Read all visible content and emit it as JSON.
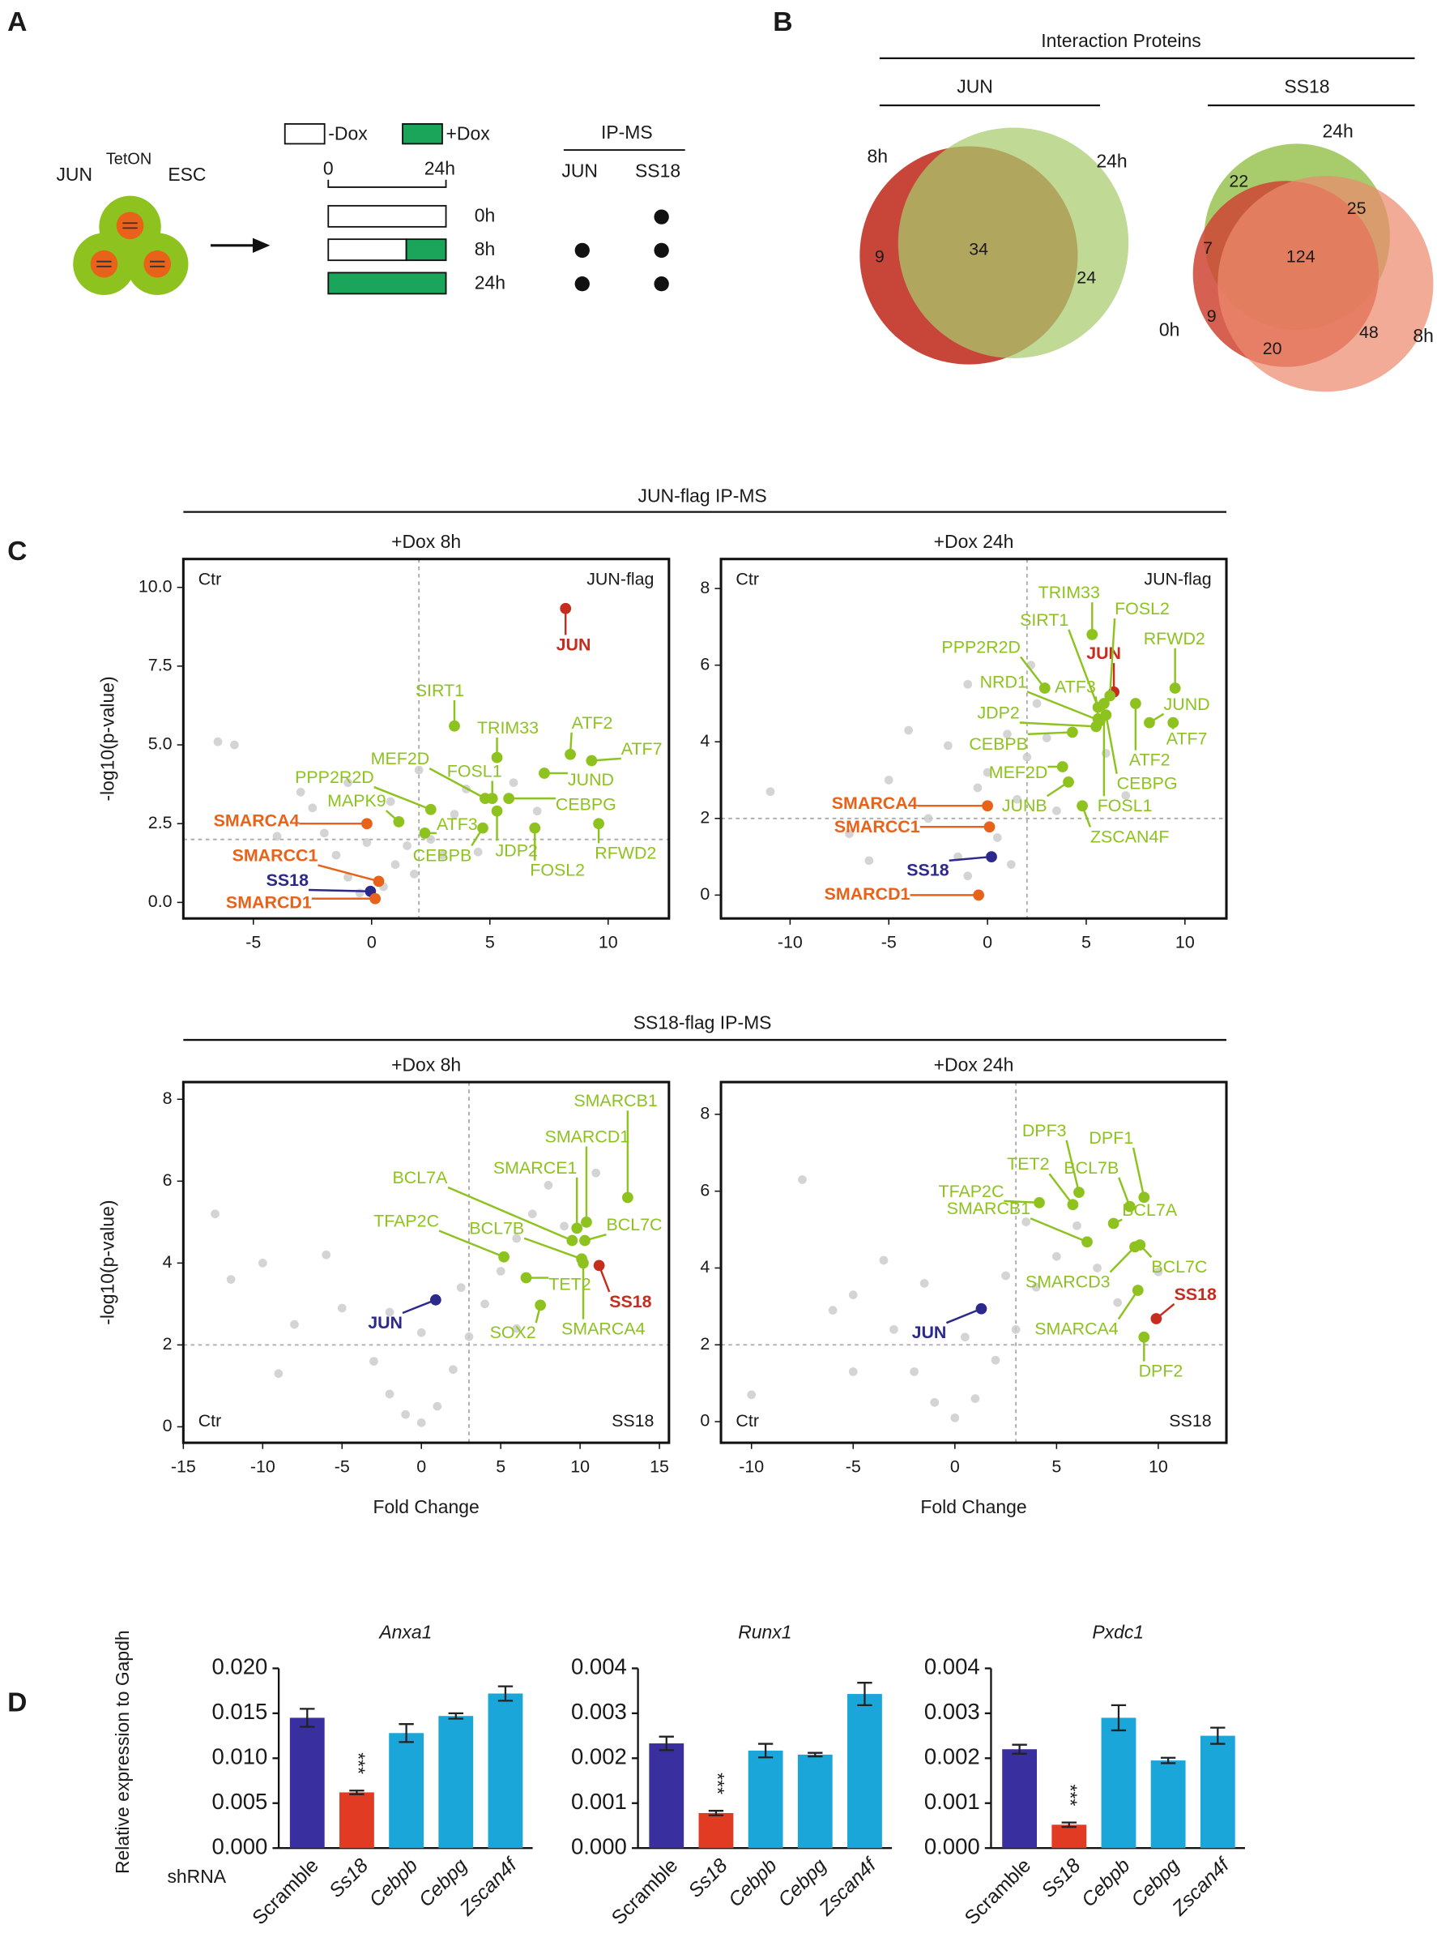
{
  "panel_labels": [
    "A",
    "B",
    "C",
    "D"
  ],
  "panel_a": {
    "cell_line": {
      "gene": "JUN",
      "superscript": "TetON",
      "suffix": "ESC"
    },
    "legend": [
      "-Dox",
      "+Dox"
    ],
    "timeline_ticks": [
      "0",
      "24h"
    ],
    "rows": [
      "0h",
      "8h",
      "24h"
    ],
    "ip_ms": {
      "title": "IP-MS",
      "columns": [
        "JUN",
        "SS18"
      ],
      "detected": [
        [
          false,
          true
        ],
        [
          true,
          true
        ],
        [
          true,
          true
        ]
      ]
    }
  },
  "panel_b": {
    "title": "Interaction Proteins",
    "venns": [
      {
        "title": "JUN",
        "sets": [
          "8h",
          "24h"
        ],
        "counts": [
          9,
          34,
          24
        ]
      },
      {
        "title": "SS18",
        "sets": [
          "24h",
          "0h",
          "8h"
        ],
        "counts": [
          22,
          25,
          7,
          124,
          9,
          20,
          48
        ]
      }
    ]
  },
  "panel_c": {
    "groups": [
      "JUN-flag IP-MS",
      "SS18-flag IP-MS"
    ]
  },
  "chart_data": [
    {
      "type": "volcano",
      "title": "+Dox 8h",
      "y_label": "-log10(p-value)",
      "xlim": [
        -7.96,
        12.57
      ],
      "ylim": [
        -0.51,
        10.9
      ],
      "xticks": [
        -5,
        0,
        5,
        10
      ],
      "yticks": [
        {
          "value": 0,
          "label": "0.0"
        },
        2.5,
        {
          "value": 5,
          "label": "5.0"
        },
        7.5,
        {
          "value": 10,
          "label": "10.0"
        }
      ],
      "thresholds": {
        "x": 2,
        "y": 2
      },
      "corner_labels": [
        "Ctr",
        "JUN-flag"
      ],
      "corner_position": "top",
      "background": {
        "color": "#c9c9c9",
        "x": [
          -6.5,
          -5.8,
          -3,
          -2,
          -1.5,
          -1,
          -0.5,
          0.5,
          1,
          1.5,
          2.5,
          3,
          3.5,
          4,
          -2.5,
          -1,
          0.8,
          2,
          6,
          7,
          -4,
          1.8,
          -0.2,
          4.5
        ],
        "y": [
          5.1,
          5.0,
          3.5,
          2.2,
          1.5,
          0.8,
          0.3,
          0.5,
          1.2,
          1.8,
          2.0,
          1.5,
          2.8,
          3.6,
          3.0,
          3.8,
          3.2,
          4.2,
          3.8,
          2.9,
          2.1,
          0.9,
          1.9,
          1.6
        ]
      },
      "points": [
        {
          "label": "JUN",
          "x": 8.2,
          "y": 9.33,
          "color": "#c62d1f",
          "bold": true
        },
        {
          "label": "SIRT1",
          "x": 3.5,
          "y": 5.6,
          "color": "#8dc21f"
        },
        {
          "label": "TRIM33",
          "x": 5.3,
          "y": 4.6,
          "color": "#8dc21f"
        },
        {
          "label": "ATF2",
          "x": 8.4,
          "y": 4.7,
          "color": "#8dc21f"
        },
        {
          "label": "ATF7",
          "x": 9.3,
          "y": 4.5,
          "color": "#8dc21f"
        },
        {
          "label": "MEF2D",
          "x": 4.8,
          "y": 3.3,
          "color": "#8dc21f"
        },
        {
          "label": "FOSL1",
          "x": 5.1,
          "y": 3.3,
          "color": "#8dc21f"
        },
        {
          "label": "PPP2R2D",
          "x": 2.5,
          "y": 2.95,
          "color": "#8dc21f"
        },
        {
          "label": "JUND",
          "x": 7.3,
          "y": 4.1,
          "color": "#8dc21f"
        },
        {
          "label": "MAPK9",
          "x": 1.15,
          "y": 2.56,
          "color": "#8dc21f"
        },
        {
          "label": "CEBPG",
          "x": 5.8,
          "y": 3.3,
          "color": "#8dc21f"
        },
        {
          "label": "ATF3",
          "x": 2.25,
          "y": 2.2,
          "color": "#8dc21f"
        },
        {
          "label": "JDP2",
          "x": 5.3,
          "y": 2.9,
          "color": "#8dc21f"
        },
        {
          "label": "CEBPB",
          "x": 4.7,
          "y": 2.36,
          "color": "#8dc21f"
        },
        {
          "label": "RFWD2",
          "x": 9.6,
          "y": 2.5,
          "color": "#8dc21f"
        },
        {
          "label": "FOSL2",
          "x": 6.9,
          "y": 2.36,
          "color": "#8dc21f"
        },
        {
          "label": "SMARCA4",
          "x": -0.2,
          "y": 2.5,
          "color": "#e8621a",
          "bold": true
        },
        {
          "label": "SMARCC1",
          "x": 0.3,
          "y": 0.67,
          "color": "#e8621a",
          "bold": true
        },
        {
          "label": "SS18",
          "x": -0.05,
          "y": 0.35,
          "color": "#2b2a8c",
          "bold": true
        },
        {
          "label": "SMARCD1",
          "x": 0.15,
          "y": 0.12,
          "color": "#e8621a",
          "bold": true
        }
      ]
    },
    {
      "type": "volcano",
      "title": "+Dox 24h",
      "xlim": [
        -13.5,
        12.1
      ],
      "ylim": [
        -0.61,
        8.77
      ],
      "xticks": [
        -10,
        -5,
        0,
        5,
        10
      ],
      "yticks": [
        0,
        2,
        4,
        6,
        8
      ],
      "thresholds": {
        "x": 2,
        "y": 2
      },
      "corner_labels": [
        "Ctr",
        "JUN-flag"
      ],
      "corner_position": "top",
      "background": {
        "color": "#c9c9c9",
        "x": [
          -11,
          -7,
          -5,
          -3,
          -2,
          -1.5,
          -1,
          0,
          0.5,
          1,
          1.5,
          2,
          2.5,
          3,
          -1,
          -4,
          3.5,
          1.2,
          -0.5,
          6,
          7,
          -6,
          2.2
        ],
        "y": [
          2.7,
          1.6,
          3.0,
          2.0,
          3.9,
          1.0,
          0.5,
          3.2,
          1.5,
          4.2,
          2.5,
          3.6,
          5.0,
          4.1,
          5.5,
          4.3,
          2.2,
          0.8,
          2.8,
          3.7,
          2.6,
          0.9,
          6.0
        ]
      },
      "points": [
        {
          "label": "JUN",
          "x": 6.4,
          "y": 5.3,
          "color": "#c62d1f",
          "bold": true
        },
        {
          "label": "TRIM33",
          "x": 5.3,
          "y": 6.8,
          "color": "#8dc21f"
        },
        {
          "label": "SIRT1",
          "x": 5.6,
          "y": 4.9,
          "color": "#8dc21f"
        },
        {
          "label": "FOSL2",
          "x": 6.2,
          "y": 5.2,
          "color": "#8dc21f"
        },
        {
          "label": "RFWD2",
          "x": 9.5,
          "y": 5.4,
          "color": "#8dc21f"
        },
        {
          "label": "PPP2R2D",
          "x": 2.9,
          "y": 5.4,
          "color": "#8dc21f"
        },
        {
          "label": "ATF3",
          "x": 5.6,
          "y": 4.6,
          "color": "#8dc21f"
        },
        {
          "label": "NRD1",
          "x": 5.7,
          "y": 4.55,
          "color": "#8dc21f"
        },
        {
          "label": "JUND",
          "x": 8.2,
          "y": 4.5,
          "color": "#8dc21f"
        },
        {
          "label": "JDP2",
          "x": 5.5,
          "y": 4.4,
          "color": "#8dc21f"
        },
        {
          "label": "ATF7",
          "x": 9.4,
          "y": 4.5,
          "color": "#8dc21f"
        },
        {
          "label": "CEBPB",
          "x": 4.3,
          "y": 4.25,
          "color": "#8dc21f"
        },
        {
          "label": "ATF2",
          "x": 7.5,
          "y": 5.0,
          "color": "#8dc21f"
        },
        {
          "label": "MEF2D",
          "x": 3.8,
          "y": 3.35,
          "color": "#8dc21f"
        },
        {
          "label": "CEBPG",
          "x": 6.0,
          "y": 4.7,
          "color": "#8dc21f"
        },
        {
          "label": "JUNB",
          "x": 4.1,
          "y": 2.95,
          "color": "#8dc21f"
        },
        {
          "label": "FOSL1",
          "x": 5.9,
          "y": 5.0,
          "color": "#8dc21f"
        },
        {
          "label": "ZSCAN4F",
          "x": 4.8,
          "y": 2.33,
          "color": "#8dc21f"
        },
        {
          "label": "SMARCA4",
          "x": 0,
          "y": 2.33,
          "color": "#e8621a",
          "bold": true
        },
        {
          "label": "SMARCC1",
          "x": 0.1,
          "y": 1.78,
          "color": "#e8621a",
          "bold": true
        },
        {
          "label": "SS18",
          "x": 0.2,
          "y": 1.0,
          "color": "#2b2a8c",
          "bold": true
        },
        {
          "label": "SMARCD1",
          "x": -0.45,
          "y": 0.0,
          "color": "#e8621a",
          "bold": true
        }
      ]
    },
    {
      "type": "volcano",
      "title": "+Dox 8h",
      "x_label": "Fold Change",
      "y_label": "-log10(p-value)",
      "xlim": [
        -15,
        15.6
      ],
      "ylim": [
        -0.39,
        8.42
      ],
      "xticks": [
        -15,
        -10,
        -5,
        0,
        5,
        10,
        15
      ],
      "yticks": [
        0,
        2,
        4,
        6,
        8
      ],
      "thresholds": {
        "x": 3,
        "y": 2
      },
      "corner_labels": [
        "Ctr",
        "SS18"
      ],
      "corner_position": "bottom",
      "background": {
        "color": "#c9c9c9",
        "x": [
          -13,
          -12,
          -10,
          -8,
          -6,
          -5,
          -3,
          -2,
          -1,
          0,
          1,
          2,
          3,
          4,
          5,
          6,
          7,
          8,
          -2,
          0,
          2.5,
          9,
          11,
          -9,
          6
        ],
        "y": [
          5.2,
          3.6,
          4.0,
          2.5,
          4.2,
          2.9,
          1.6,
          0.8,
          0.3,
          0.1,
          0.5,
          1.4,
          2.2,
          3.0,
          3.8,
          4.6,
          5.2,
          5.9,
          2.8,
          2.3,
          3.4,
          4.9,
          6.2,
          1.3,
          2.4
        ]
      },
      "points": [
        {
          "label": "SMARCB1",
          "x": 13.0,
          "y": 5.6,
          "color": "#8dc21f"
        },
        {
          "label": "SMARCD1",
          "x": 10.4,
          "y": 5.0,
          "color": "#8dc21f"
        },
        {
          "label": "SMARCE1",
          "x": 9.8,
          "y": 4.85,
          "color": "#8dc21f"
        },
        {
          "label": "BCL7A",
          "x": 9.5,
          "y": 4.55,
          "color": "#8dc21f"
        },
        {
          "label": "BCL7C",
          "x": 10.3,
          "y": 4.55,
          "color": "#8dc21f"
        },
        {
          "label": "TFAP2C",
          "x": 5.2,
          "y": 4.15,
          "color": "#8dc21f"
        },
        {
          "label": "BCL7B",
          "x": 10.1,
          "y": 4.1,
          "color": "#8dc21f"
        },
        {
          "label": "TET2",
          "x": 6.6,
          "y": 3.64,
          "color": "#8dc21f"
        },
        {
          "label": "SS18",
          "x": 11.2,
          "y": 3.94,
          "color": "#c62d1f",
          "bold": true
        },
        {
          "label": "SMARCA4",
          "x": 10.2,
          "y": 4.0,
          "color": "#8dc21f"
        },
        {
          "label": "SOX2",
          "x": 7.5,
          "y": 2.97,
          "color": "#8dc21f"
        },
        {
          "label": "JUN",
          "x": 0.9,
          "y": 3.1,
          "color": "#2b2a8c",
          "bold": true
        }
      ]
    },
    {
      "type": "volcano",
      "title": "+Dox 24h",
      "x_label": "Fold Change",
      "xlim": [
        -11.5,
        13.35
      ],
      "ylim": [
        -0.55,
        8.84
      ],
      "xticks": [
        -10,
        -5,
        0,
        5,
        10
      ],
      "yticks": [
        0,
        2,
        4,
        6,
        8
      ],
      "thresholds": {
        "x": 3,
        "y": 2
      },
      "corner_labels": [
        "Ctr",
        "SS18"
      ],
      "corner_position": "bottom",
      "background": {
        "color": "#c9c9c9",
        "x": [
          -10,
          -7.5,
          -6,
          -5,
          -3,
          -2,
          -1,
          0,
          1,
          2,
          3,
          4,
          5,
          6,
          -3.5,
          -1.5,
          2.5,
          7,
          8,
          0.5,
          -5,
          3.5,
          10
        ],
        "y": [
          0.7,
          6.3,
          2.9,
          3.3,
          2.4,
          1.3,
          0.5,
          0.1,
          0.6,
          1.6,
          2.4,
          3.5,
          4.3,
          5.1,
          4.2,
          3.6,
          3.8,
          4.0,
          3.1,
          2.2,
          1.3,
          5.2,
          3.9
        ]
      },
      "points": [
        {
          "label": "DPF3",
          "x": 6.1,
          "y": 5.97,
          "color": "#8dc21f"
        },
        {
          "label": "DPF1",
          "x": 9.3,
          "y": 5.84,
          "color": "#8dc21f"
        },
        {
          "label": "TET2",
          "x": 5.8,
          "y": 5.65,
          "color": "#8dc21f"
        },
        {
          "label": "BCL7B",
          "x": 8.6,
          "y": 5.6,
          "color": "#8dc21f"
        },
        {
          "label": "TFAP2C",
          "x": 4.15,
          "y": 5.7,
          "color": "#8dc21f"
        },
        {
          "label": "BCL7A",
          "x": 7.8,
          "y": 5.16,
          "color": "#8dc21f"
        },
        {
          "label": "SMARCB1",
          "x": 6.5,
          "y": 4.68,
          "color": "#8dc21f"
        },
        {
          "label": "BCL7C",
          "x": 9.1,
          "y": 4.6,
          "color": "#8dc21f"
        },
        {
          "label": "SMARCD3",
          "x": 8.85,
          "y": 4.55,
          "color": "#8dc21f"
        },
        {
          "label": "SS18",
          "x": 9.9,
          "y": 2.68,
          "color": "#c62d1f",
          "bold": true
        },
        {
          "label": "SMARCA4",
          "x": 9.0,
          "y": 3.42,
          "color": "#8dc21f"
        },
        {
          "label": "DPF2",
          "x": 9.3,
          "y": 2.2,
          "color": "#8dc21f"
        },
        {
          "label": "JUN",
          "x": 1.3,
          "y": 2.94,
          "color": "#2b2a8c",
          "bold": true
        }
      ]
    },
    {
      "type": "bar",
      "title": "Anxa1",
      "y_label": "Relative expression to Gapdh",
      "x_prefix": "shRNA",
      "categories": [
        "Scramble",
        "Ss18",
        "Cebpb",
        "Cebpg",
        "Zscan4f"
      ],
      "category_italic": [
        false,
        true,
        true,
        true,
        true
      ],
      "values": [
        0.0145,
        0.0062,
        0.0128,
        0.0147,
        0.0172
      ],
      "errors": [
        0.001,
        0.0002,
        0.001,
        0.0003,
        0.0008
      ],
      "colors": [
        "#3a2f9e",
        "#e23b24",
        "#1ba6da",
        "#1ba6da",
        "#1ba6da"
      ],
      "value_annotations": [
        null,
        "***",
        null,
        null,
        null
      ],
      "ylim": [
        0,
        0.02
      ],
      "yticks": [
        {
          "value": 0,
          "label": "0.000"
        },
        0.005,
        {
          "value": 0.01,
          "label": "0.010"
        },
        0.015,
        {
          "value": 0.02,
          "label": "0.020"
        }
      ]
    },
    {
      "type": "bar",
      "title": "Runx1",
      "categories": [
        "Scramble",
        "Ss18",
        "Cebpb",
        "Cebpg",
        "Zscan4f"
      ],
      "category_italic": [
        false,
        true,
        true,
        true,
        true
      ],
      "values": [
        0.00233,
        0.00078,
        0.00217,
        0.00208,
        0.00343
      ],
      "errors": [
        0.00015,
        5e-05,
        0.00015,
        4e-05,
        0.00025
      ],
      "colors": [
        "#3a2f9e",
        "#e23b24",
        "#1ba6da",
        "#1ba6da",
        "#1ba6da"
      ],
      "value_annotations": [
        null,
        "***",
        null,
        null,
        null
      ],
      "ylim": [
        0,
        0.004
      ],
      "yticks": [
        {
          "value": 0,
          "label": "0.000"
        },
        0.001,
        0.002,
        0.003,
        0.004
      ]
    },
    {
      "type": "bar",
      "title": "Pxdc1",
      "categories": [
        "Scramble",
        "Ss18",
        "Cebpb",
        "Cebpg",
        "Zscan4f"
      ],
      "category_italic": [
        false,
        true,
        true,
        true,
        true
      ],
      "values": [
        0.0022,
        0.00052,
        0.0029,
        0.00195,
        0.0025
      ],
      "errors": [
        0.0001,
        5e-05,
        0.00028,
        6e-05,
        0.00018
      ],
      "colors": [
        "#3a2f9e",
        "#e23b24",
        "#1ba6da",
        "#1ba6da",
        "#1ba6da"
      ],
      "value_annotations": [
        null,
        "***",
        null,
        null,
        null
      ],
      "ylim": [
        0,
        0.004
      ],
      "yticks": [
        {
          "value": 0,
          "label": "0.000"
        },
        0.001,
        0.002,
        0.003,
        0.004
      ]
    }
  ]
}
